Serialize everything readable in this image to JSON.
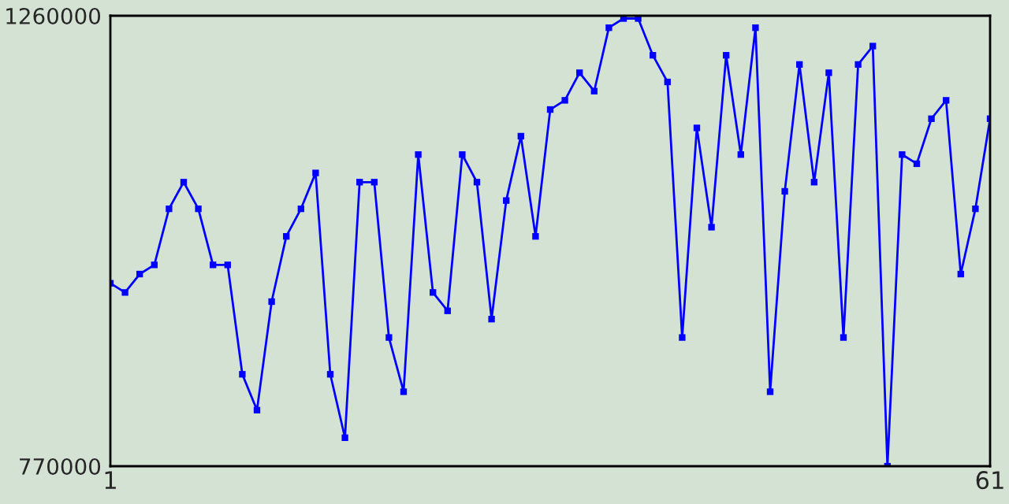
{
  "chart_data": {
    "type": "line",
    "x": [
      1,
      2,
      3,
      4,
      5,
      6,
      7,
      8,
      9,
      10,
      11,
      12,
      13,
      14,
      15,
      16,
      17,
      18,
      19,
      20,
      21,
      22,
      23,
      24,
      25,
      26,
      27,
      28,
      29,
      30,
      31,
      32,
      33,
      34,
      35,
      36,
      37,
      38,
      39,
      40,
      41,
      42,
      43,
      44,
      45,
      46,
      47,
      48,
      49,
      50,
      51,
      52,
      53,
      54,
      55,
      56,
      57,
      58,
      59,
      60,
      61
    ],
    "series": [
      {
        "color": "#0000ff",
        "values": [
          969000,
          959000,
          979000,
          989000,
          1050000,
          1079000,
          1050000,
          989000,
          989000,
          870000,
          831000,
          949000,
          1020000,
          1050000,
          1089000,
          870000,
          801000,
          1079000,
          1079000,
          910000,
          851000,
          1109000,
          959000,
          939000,
          1109000,
          1079000,
          930000,
          1059000,
          1129000,
          1020000,
          1158000,
          1168000,
          1198000,
          1178000,
          1247000,
          1257000,
          1257000,
          1217000,
          1188000,
          910000,
          1138000,
          1030000,
          1217000,
          1109000,
          1247000,
          851000,
          1069000,
          1207000,
          1079000,
          1198000,
          910000,
          1207000,
          1227000,
          770000,
          1109000,
          1099000,
          1148000,
          1168000,
          979000,
          1050000,
          1148000
        ]
      }
    ],
    "xlim": [
      1,
      61
    ],
    "xticks": [
      1,
      61
    ],
    "ylim": [
      770000,
      1260000
    ],
    "yticks": [
      770000,
      1260000
    ],
    "marker": "square",
    "line_style": "solid",
    "legend": false
  }
}
